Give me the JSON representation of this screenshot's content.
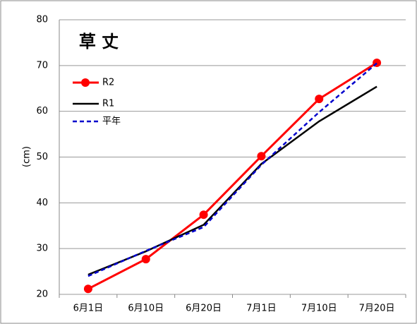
{
  "chart_data": {
    "type": "line",
    "title": "草 丈",
    "y_label": "(cm)",
    "categories": [
      "6月1日",
      "6月10日",
      "6月20日",
      "7月1日",
      "7月10日",
      "7月20日"
    ],
    "series": [
      {
        "name": "R2",
        "color": "#ff0000",
        "style": "solid",
        "markers": true,
        "values": [
          21.2,
          27.7,
          37.4,
          50.2,
          62.7,
          70.6
        ]
      },
      {
        "name": "R1",
        "color": "#000000",
        "style": "solid",
        "markers": false,
        "values": [
          24.3,
          29.4,
          35.2,
          48.5,
          57.8,
          65.4
        ]
      },
      {
        "name": "平年",
        "color": "#0000cc",
        "style": "dashed",
        "markers": false,
        "values": [
          24.0,
          29.5,
          34.7,
          48.3,
          59.8,
          70.5
        ]
      }
    ],
    "ylim": [
      20,
      80
    ],
    "yticks": [
      20,
      30,
      40,
      50,
      60,
      70,
      80
    ],
    "grid": true,
    "legend": "upper left"
  }
}
